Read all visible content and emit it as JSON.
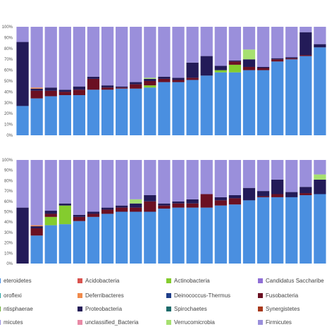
{
  "chart_data": [
    {
      "type": "stacked-bar",
      "grid": false,
      "ylim": [
        0,
        100
      ],
      "yticks": [
        "0%",
        "10%",
        "20%",
        "30%",
        "40%",
        "50%",
        "60%",
        "70%",
        "80%",
        "90%",
        "100%"
      ],
      "bars": [
        {
          "Bacteroidetes": 27,
          "Proteobacteria": 59,
          "Firmicutes": 14
        },
        {
          "Bacteroidetes": 34,
          "Fusobacteria": 7,
          "Proteobacteria": 2,
          "Deferribacteres": 1,
          "Firmicutes": 56
        },
        {
          "Bacteroidetes": 36,
          "Fusobacteria": 5,
          "Proteobacteria": 3,
          "Firmicutes": 56
        },
        {
          "Bacteroidetes": 37,
          "Fusobacteria": 3,
          "Proteobacteria": 2,
          "Firmicutes": 58
        },
        {
          "Bacteroidetes": 37,
          "Fusobacteria": 5,
          "Proteobacteria": 3,
          "Firmicutes": 55
        },
        {
          "Bacteroidetes": 42,
          "Fusobacteria": 10,
          "Proteobacteria": 2,
          "Firmicutes": 46
        },
        {
          "Bacteroidetes": 42,
          "Fusobacteria": 2,
          "Proteobacteria": 2,
          "Firmicutes": 54
        },
        {
          "Bacteroidetes": 43,
          "Fusobacteria": 1,
          "Proteobacteria": 1,
          "Firmicutes": 55
        },
        {
          "Bacteroidetes": 43,
          "Fusobacteria": 4,
          "Proteobacteria": 2,
          "Firmicutes": 51
        },
        {
          "Bacteroidetes": 44,
          "Actinobacteria": 2,
          "Fusobacteria": 4,
          "Proteobacteria": 2,
          "Verrucomicrobia": 1,
          "Firmicutes": 47
        },
        {
          "Bacteroidetes": 49,
          "Fusobacteria": 3,
          "Proteobacteria": 2,
          "Firmicutes": 46
        },
        {
          "Bacteroidetes": 49,
          "Fusobacteria": 2,
          "Proteobacteria": 2,
          "Firmicutes": 47
        },
        {
          "Bacteroidetes": 51,
          "Fusobacteria": 2,
          "Proteobacteria": 14,
          "Firmicutes": 33
        },
        {
          "Bacteroidetes": 55,
          "Proteobacteria": 18,
          "Firmicutes": 27
        },
        {
          "Bacteroidetes": 58,
          "Actinobacteria": 2,
          "Proteobacteria": 4,
          "Firmicutes": 36
        },
        {
          "Bacteroidetes": 58,
          "Actinobacteria": 7,
          "Fusobacteria": 3,
          "Proteobacteria": 1,
          "Firmicutes": 31
        },
        {
          "Bacteroidetes": 60,
          "Fusobacteria": 3,
          "Proteobacteria": 7,
          "Verrucomicrobia": 9,
          "Firmicutes": 21
        },
        {
          "Bacteroidetes": 60,
          "Fusobacteria": 2,
          "Proteobacteria": 1,
          "Firmicutes": 37
        },
        {
          "Bacteroidetes": 68,
          "Fusobacteria": 2,
          "Proteobacteria": 1,
          "Firmicutes": 29
        },
        {
          "Bacteroidetes": 70,
          "Fusobacteria": 1,
          "Proteobacteria": 1,
          "Firmicutes": 28
        },
        {
          "Bacteroidetes": 73,
          "Proteobacteria": 21,
          "Fusobacteria": 1,
          "Firmicutes": 5
        },
        {
          "Bacteroidetes": 81,
          "Proteobacteria": 3,
          "Firmicutes": 16
        }
      ]
    },
    {
      "type": "stacked-bar",
      "grid": false,
      "ylim": [
        0,
        100
      ],
      "yticks": [
        "0%",
        "10%",
        "20%",
        "30%",
        "40%",
        "50%",
        "60%",
        "70%",
        "80%",
        "90%",
        "100%"
      ],
      "bars": [
        {
          "Proteobacteria": 54,
          "Firmicutes": 46
        },
        {
          "Bacteroidetes": 27,
          "Fusobacteria": 7,
          "Proteobacteria": 2,
          "Deferribacteres": 1,
          "Firmicutes": 63
        },
        {
          "Bacteroidetes": 37,
          "Actinobacteria": 8,
          "Proteobacteria": 3,
          "Fusobacteria": 3,
          "Firmicutes": 49
        },
        {
          "Bacteroidetes": 38,
          "Actinobacteria": 18,
          "Proteobacteria": 2,
          "Firmicutes": 42
        },
        {
          "Bacteroidetes": 41,
          "Fusobacteria": 4,
          "Proteobacteria": 2,
          "Firmicutes": 53
        },
        {
          "Bacteroidetes": 45,
          "Fusobacteria": 3,
          "Proteobacteria": 2,
          "Firmicutes": 50
        },
        {
          "Bacteroidetes": 48,
          "Fusobacteria": 4,
          "Proteobacteria": 2,
          "Firmicutes": 46
        },
        {
          "Bacteroidetes": 50,
          "Fusobacteria": 4,
          "Proteobacteria": 2,
          "Firmicutes": 44
        },
        {
          "Bacteroidetes": 50,
          "Fusobacteria": 4,
          "Proteobacteria": 4,
          "Verrucomicrobia": 4,
          "Firmicutes": 38
        },
        {
          "Bacteroidetes": 50,
          "Fusobacteria": 10,
          "Proteobacteria": 6,
          "Firmicutes": 34
        },
        {
          "Bacteroidetes": 53,
          "Fusobacteria": 3,
          "Proteobacteria": 2,
          "Firmicutes": 42
        },
        {
          "Bacteroidetes": 54,
          "Fusobacteria": 4,
          "Proteobacteria": 2,
          "Firmicutes": 40
        },
        {
          "Bacteroidetes": 54,
          "Fusobacteria": 4,
          "Proteobacteria": 4,
          "Firmicutes": 38
        },
        {
          "Bacteroidetes": 54,
          "Fusobacteria": 13,
          "Firmicutes": 33
        },
        {
          "Bacteroidetes": 56,
          "Fusobacteria": 5,
          "Proteobacteria": 3,
          "Firmicutes": 36
        },
        {
          "Bacteroidetes": 57,
          "Fusobacteria": 6,
          "Proteobacteria": 3,
          "Firmicutes": 34
        },
        {
          "Bacteroidetes": 61,
          "Proteobacteria": 12,
          "Firmicutes": 27
        },
        {
          "Bacteroidetes": 64,
          "Proteobacteria": 5,
          "Fusobacteria": 1,
          "Firmicutes": 30
        },
        {
          "Bacteroidetes": 64,
          "Fusobacteria": 3,
          "Proteobacteria": 14,
          "Firmicutes": 19
        },
        {
          "Bacteroidetes": 64,
          "Proteobacteria": 5,
          "Firmicutes": 31
        },
        {
          "Bacteroidetes": 66,
          "Proteobacteria": 6,
          "Fusobacteria": 2,
          "Firmicutes": 26
        },
        {
          "Bacteroidetes": 67,
          "Proteobacteria": 14,
          "Verrucomicrobia": 5,
          "Firmicutes": 14
        }
      ]
    }
  ],
  "colors": {
    "Bacteroidetes": "#4a8fe0",
    "Firmicutes": "#9a8fdb",
    "Proteobacteria": "#231b58",
    "Fusobacteria": "#6b1022",
    "Actinobacteria": "#84cc2e",
    "Verrucomicrobia": "#a6e070",
    "Deferribacteres": "#f08a4b"
  },
  "legend": {
    "rows": [
      [
        {
          "label": "eteroidetes",
          "color": "#4a8fe0"
        },
        {
          "label": "Acidobacteria",
          "color": "#d9534f"
        },
        {
          "label": "Actinobacteria",
          "color": "#84cc2e"
        },
        {
          "label": "Candidatus Saccharibe",
          "color": "#8f6fd6"
        }
      ],
      [
        {
          "label": "oroflexi",
          "color": "#2aa3a3"
        },
        {
          "label": "Deferribacteres",
          "color": "#f08a4b"
        },
        {
          "label": "Deinococcus-Thermus",
          "color": "#1f3f8a"
        },
        {
          "label": "Fusobacteria",
          "color": "#6b1022"
        }
      ],
      [
        {
          "label": "ntisphaerae",
          "color": "#6fae3a"
        },
        {
          "label": "Proteobacteria",
          "color": "#231b58"
        },
        {
          "label": "Spirochaetes",
          "color": "#1b6b6b"
        },
        {
          "label": "Synergistetes",
          "color": "#a8391c"
        }
      ],
      [
        {
          "label": "micutes",
          "color": "#9a8fdb"
        },
        {
          "label": "unclassified_Bacteria",
          "color": "#e88aa6"
        },
        {
          "label": "Verrucomicrobia",
          "color": "#a6e070"
        },
        {
          "label": "Firmicutes",
          "color": "#9a8fdb"
        }
      ]
    ]
  }
}
